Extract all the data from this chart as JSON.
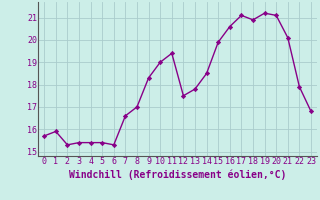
{
  "x": [
    0,
    1,
    2,
    3,
    4,
    5,
    6,
    7,
    8,
    9,
    10,
    11,
    12,
    13,
    14,
    15,
    16,
    17,
    18,
    19,
    20,
    21,
    22,
    23
  ],
  "y": [
    15.7,
    15.9,
    15.3,
    15.4,
    15.4,
    15.4,
    15.3,
    16.6,
    17.0,
    18.3,
    19.0,
    19.4,
    17.5,
    17.8,
    18.5,
    19.9,
    20.6,
    21.1,
    20.9,
    21.2,
    21.1,
    20.1,
    17.9,
    16.8
  ],
  "line_color": "#880088",
  "marker": "D",
  "marker_size": 2.2,
  "bg_color": "#cceee8",
  "grid_color": "#aacccc",
  "xlabel": "Windchill (Refroidissement éolien,°C)",
  "ylim": [
    14.8,
    21.7
  ],
  "xlim": [
    -0.5,
    23.5
  ],
  "yticks": [
    15,
    16,
    17,
    18,
    19,
    20,
    21
  ],
  "xticks": [
    0,
    1,
    2,
    3,
    4,
    5,
    6,
    7,
    8,
    9,
    10,
    11,
    12,
    13,
    14,
    15,
    16,
    17,
    18,
    19,
    20,
    21,
    22,
    23
  ],
  "tick_color": "#880088",
  "label_color": "#880088",
  "font_size": 6.0,
  "xlabel_font_size": 7.0,
  "line_width": 1.0
}
